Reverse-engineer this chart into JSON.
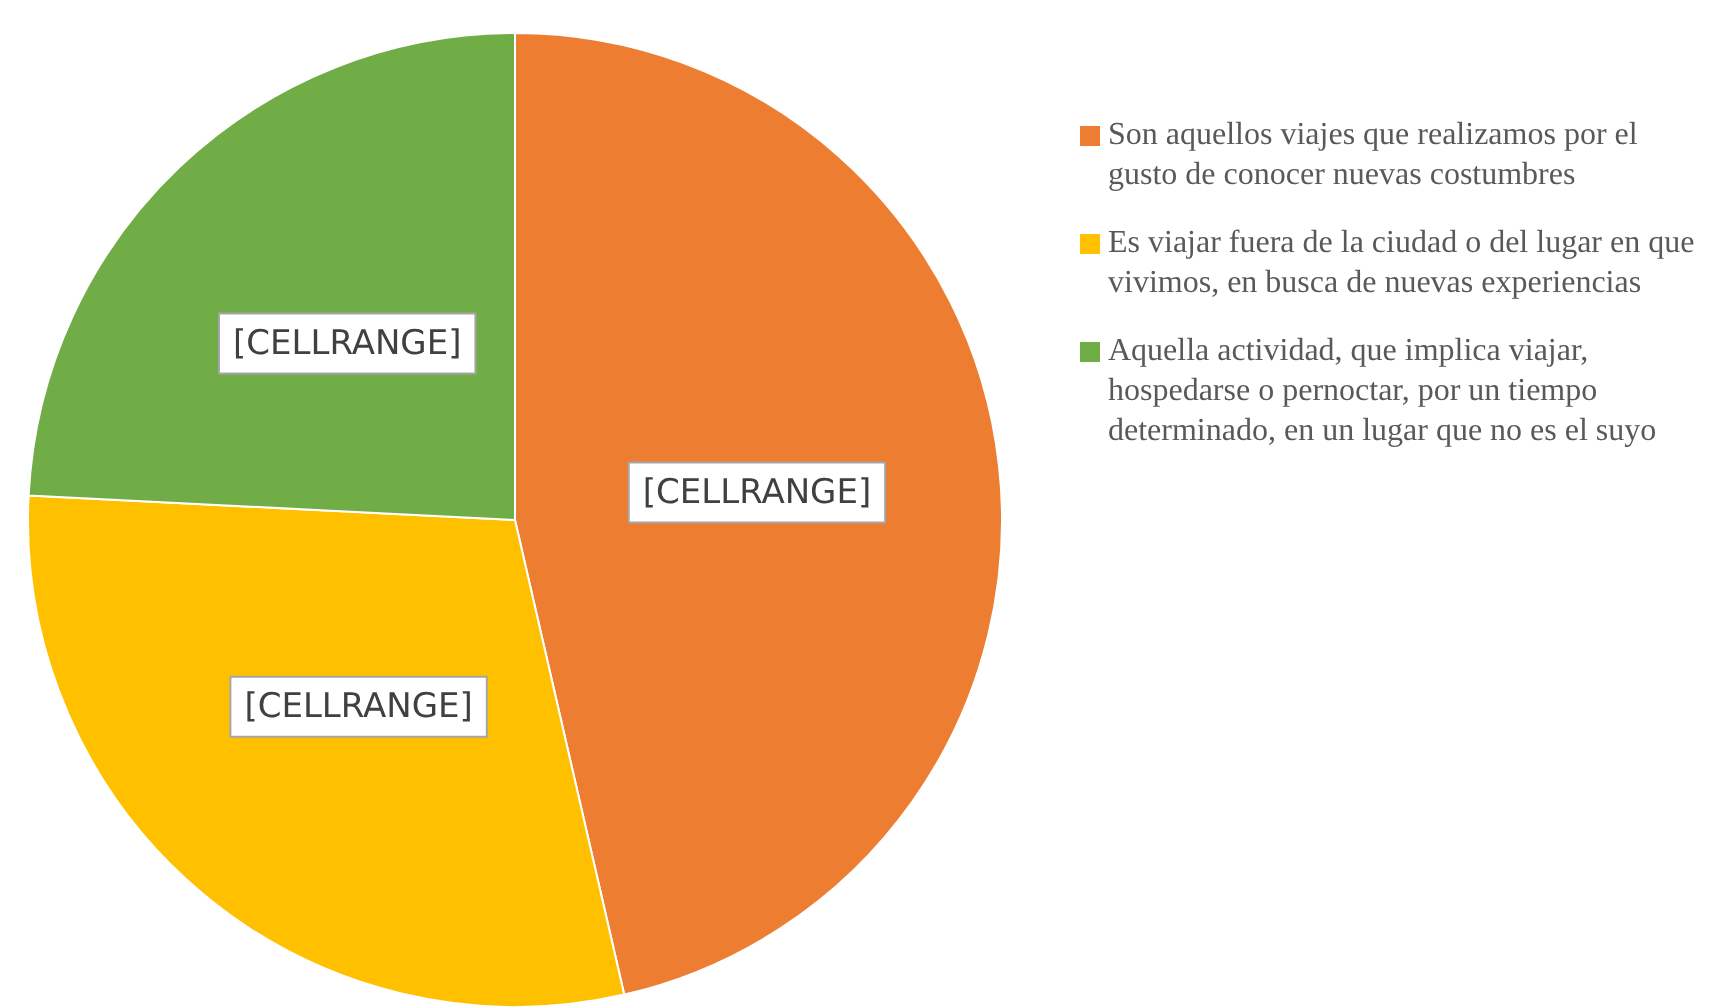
{
  "chart_data": {
    "type": "pie",
    "categories": [
      "Son aquellos viajes que realizamos por el gusto de conocer nuevas costumbres",
      "Es viajar fuera de la ciudad o del lugar en que vivimos, en busca de nuevas experiencias",
      "Aquella actividad, que implica viajar, hospedarse o pernoctar, por un tiempo determinado, en un lugar que no es el suyo"
    ],
    "values": [
      46.4,
      29.4,
      24.2
    ],
    "colors": [
      "#ed7d31",
      "#ffc000",
      "#70ad47"
    ],
    "value_labels": [
      "[CELLRANGE]",
      "[CELLRANGE]",
      "[CELLRANGE]"
    ],
    "legend": "right"
  }
}
